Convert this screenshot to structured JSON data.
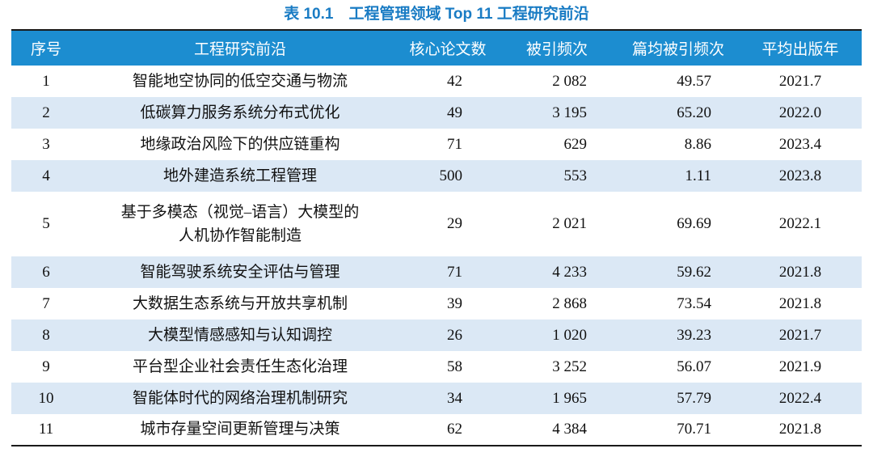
{
  "title": "表 10.1　工程管理领域 Top 11 工程研究前沿",
  "colors": {
    "header_bg": "#1C8DD0",
    "stripe_bg": "#DBE8F5",
    "title_text": "#1A7CC4",
    "border_dark": "#1A1A1A"
  },
  "table": {
    "headers": [
      "序号",
      "工程研究前沿",
      "核心论文数",
      "被引频次",
      "篇均被引频次",
      "平均出版年"
    ],
    "rows": [
      {
        "cells": [
          "1",
          "智能地空协同的低空交通与物流",
          "42",
          "2 082",
          "49.57",
          "2021.7"
        ]
      },
      {
        "cells": [
          "2",
          "低碳算力服务系统分布式优化",
          "49",
          "3 195",
          "65.20",
          "2022.0"
        ]
      },
      {
        "cells": [
          "3",
          "地缘政治风险下的供应链重构",
          "71",
          "629",
          "8.86",
          "2023.4"
        ]
      },
      {
        "cells": [
          "4",
          "地外建造系统工程管理",
          "500",
          "553",
          "1.11",
          "2023.8"
        ]
      },
      {
        "cells": [
          "5",
          "基于多模态（视觉–语言）大模型的\n人机协作智能制造",
          "29",
          "2 021",
          "69.69",
          "2022.1"
        ]
      },
      {
        "cells": [
          "6",
          "智能驾驶系统安全评估与管理",
          "71",
          "4 233",
          "59.62",
          "2021.8"
        ]
      },
      {
        "cells": [
          "7",
          "大数据生态系统与开放共享机制",
          "39",
          "2 868",
          "73.54",
          "2021.8"
        ]
      },
      {
        "cells": [
          "8",
          "大模型情感感知与认知调控",
          "26",
          "1 020",
          "39.23",
          "2021.7"
        ]
      },
      {
        "cells": [
          "9",
          "平台型企业社会责任生态化治理",
          "58",
          "3 252",
          "56.07",
          "2021.9"
        ]
      },
      {
        "cells": [
          "10",
          "智能体时代的网络治理机制研究",
          "34",
          "1 965",
          "57.79",
          "2022.4"
        ]
      },
      {
        "cells": [
          "11",
          "城市存量空间更新管理与决策",
          "62",
          "4 384",
          "70.71",
          "2021.8"
        ]
      }
    ]
  }
}
